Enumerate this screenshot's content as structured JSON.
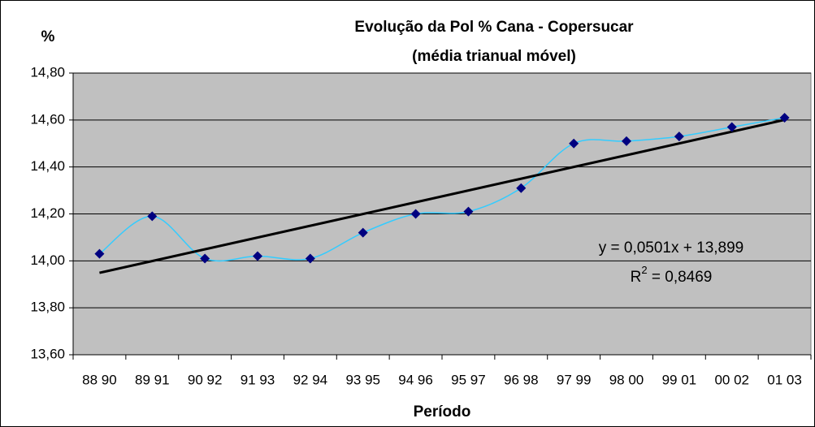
{
  "chart_data": {
    "type": "line",
    "title": "Evolução da Pol % Cana - Copersucar",
    "subtitle": "(média trianual móvel)",
    "y_label": "%",
    "x_label": "Período",
    "categories": [
      "88 90",
      "89 91",
      "90 92",
      "91 93",
      "92 94",
      "93 95",
      "94 96",
      "95 97",
      "96 98",
      "97 99",
      "98 00",
      "99 01",
      "00 02",
      "01 03"
    ],
    "series": [
      {
        "name": "Pol % Cana",
        "color": "#33ccff",
        "marker_color": "#000080",
        "values": [
          14.03,
          14.19,
          14.01,
          14.02,
          14.01,
          14.12,
          14.2,
          14.21,
          14.31,
          14.5,
          14.51,
          14.53,
          14.57,
          14.61
        ]
      }
    ],
    "ylim": [
      13.6,
      14.8
    ],
    "yticks": [
      {
        "value": 13.6,
        "label": "13,60"
      },
      {
        "value": 13.8,
        "label": "13,80"
      },
      {
        "value": 14.0,
        "label": "14,00"
      },
      {
        "value": 14.2,
        "label": "14,20"
      },
      {
        "value": 14.4,
        "label": "14,40"
      },
      {
        "value": 14.6,
        "label": "14,60"
      },
      {
        "value": 14.8,
        "label": "14,80"
      }
    ],
    "grid": true,
    "smooth": true,
    "trendline": {
      "slope": 0.0501,
      "intercept": 13.899,
      "color": "#000000",
      "equation": "y = 0,0501x + 13,899",
      "r2_symbol": "R",
      "r2_exponent": "2",
      "r2_value": " = 0,8469"
    }
  }
}
